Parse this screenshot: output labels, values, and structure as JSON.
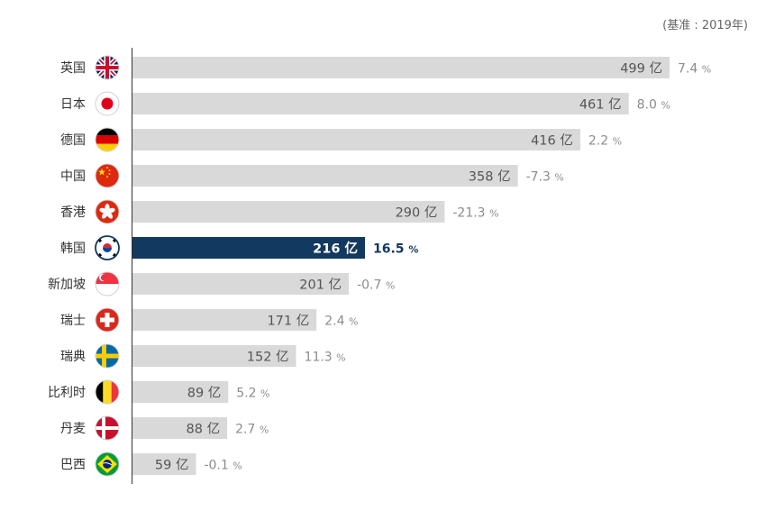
{
  "note": "(基准 : 2019年)",
  "chart_data": {
    "type": "bar",
    "orientation": "horizontal",
    "value_unit": "亿",
    "growth_unit": "%",
    "highlight_color": "#12395f",
    "bar_color": "#d9d9d9",
    "value_text_color": "#555555",
    "growth_text_color": "#8c8c8c",
    "categories": [
      "英国",
      "日本",
      "德国",
      "中国",
      "香港",
      "韩国",
      "新加坡",
      "瑞士",
      "瑞典",
      "比利时",
      "丹麦",
      "巴西"
    ],
    "series": [
      {
        "values": [
          499,
          461,
          416,
          358,
          290,
          216,
          201,
          171,
          152,
          89,
          88,
          59
        ]
      }
    ],
    "value_labels": [
      "499",
      "461",
      "416",
      "358",
      "290",
      "216",
      "201",
      "171",
      "152",
      "89",
      "88",
      "59"
    ],
    "growth_labels": [
      "7.4",
      "8.0",
      "2.2",
      "-7.3",
      "-21.3",
      "16.5",
      "-0.7",
      "2.4",
      "11.3",
      "5.2",
      "2.7",
      "-0.1"
    ],
    "highlighted": "韩国",
    "flags": [
      "uk-flag-icon",
      "japan-flag-icon",
      "germany-flag-icon",
      "china-flag-icon",
      "hongkong-flag-icon",
      "korea-flag-icon",
      "singapore-flag-icon",
      "switzerland-flag-icon",
      "sweden-flag-icon",
      "belgium-flag-icon",
      "denmark-flag-icon",
      "brazil-flag-icon"
    ],
    "xlim": [
      0,
      499
    ]
  }
}
